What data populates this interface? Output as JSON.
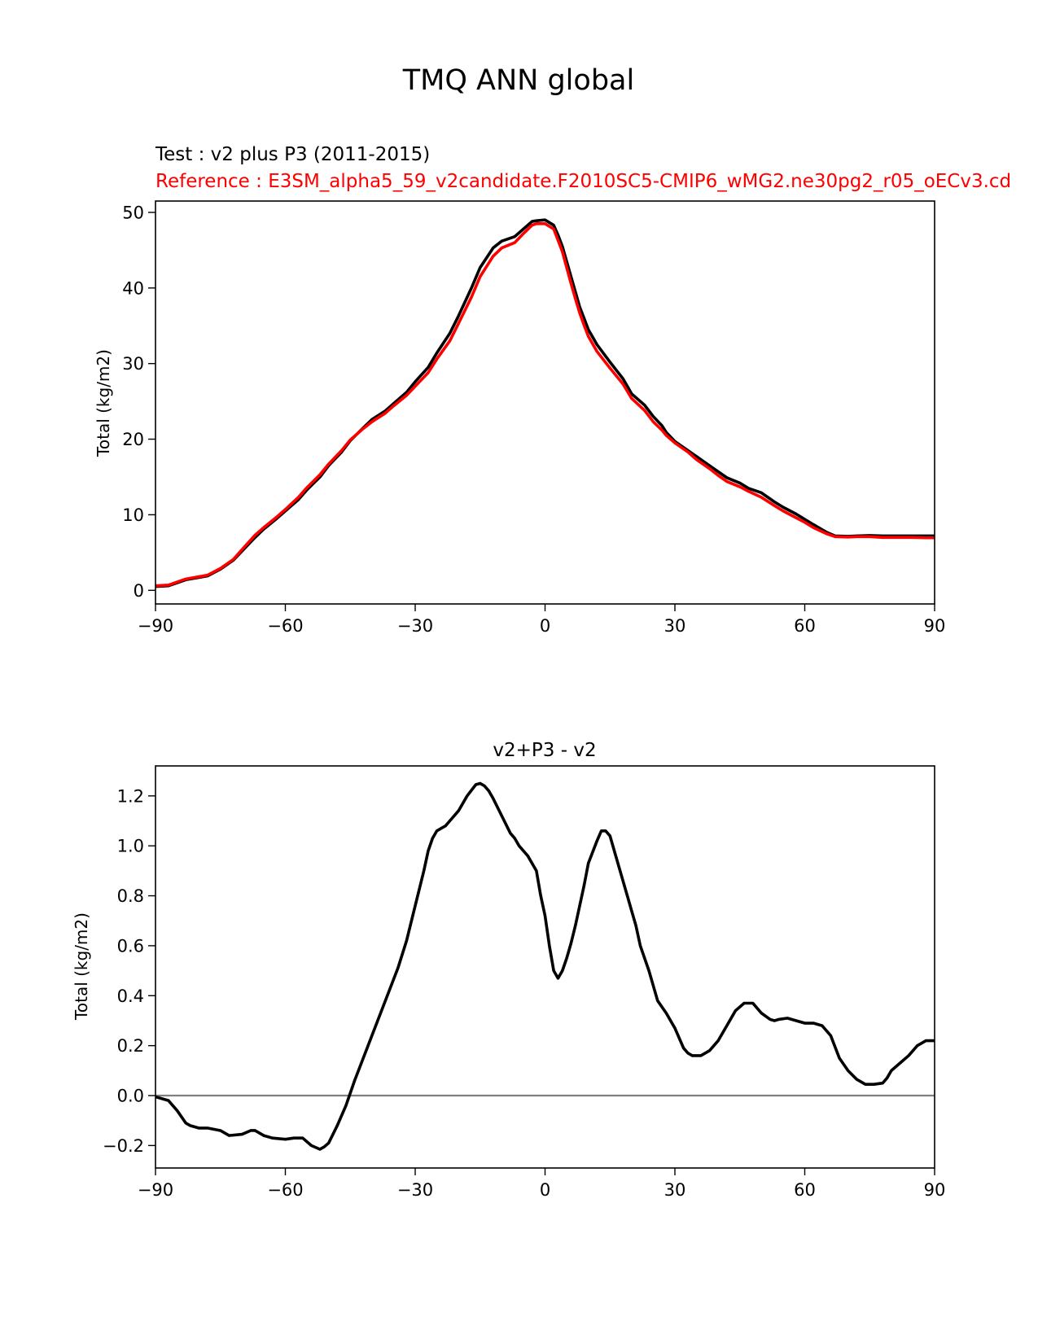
{
  "figure": {
    "suptitle": "TMQ ANN global"
  },
  "colors": {
    "test": "#000000",
    "reference": "#ff0000",
    "diff": "#000000",
    "zero_line": "#808080",
    "axes": "#000000",
    "background": "#ffffff"
  },
  "chart_data": [
    {
      "type": "line",
      "title_test": "Test : v2 plus P3 (2011-2015)",
      "title_reference": "Reference : E3SM_alpha5_59_v2candidate.F2010SC5-CMIP6_wMG2.ne30pg2_r05_oECv3.cd",
      "xlabel": "",
      "ylabel": "Total (kg/m2)",
      "xlim": [
        -90,
        90
      ],
      "ylim": [
        -1.8,
        51.5
      ],
      "xticks": [
        -90,
        -60,
        -30,
        0,
        30,
        60,
        90
      ],
      "xtick_labels": [
        "−90",
        "−60",
        "−30",
        "0",
        "30",
        "60",
        "90"
      ],
      "yticks": [
        0,
        10,
        20,
        30,
        40,
        50
      ],
      "ytick_labels": [
        "0",
        "10",
        "20",
        "30",
        "40",
        "50"
      ],
      "grid": false,
      "series": [
        {
          "role": "test",
          "x": [
            -90,
            -87,
            -85,
            -83,
            -80,
            -78,
            -75,
            -72,
            -70,
            -67,
            -65,
            -62,
            -60,
            -57,
            -55,
            -52,
            -50,
            -47,
            -45,
            -42,
            -40,
            -37,
            -35,
            -32,
            -30,
            -27,
            -25,
            -22,
            -20,
            -17,
            -15,
            -12,
            -10,
            -7,
            -5,
            -3,
            -2,
            0,
            2,
            3,
            4,
            5,
            6,
            7,
            8,
            9,
            10,
            12,
            15,
            18,
            20,
            23,
            25,
            27,
            28,
            30,
            33,
            35,
            38,
            40,
            42,
            45,
            47,
            50,
            53,
            55,
            58,
            60,
            62,
            65,
            67,
            70,
            72,
            75,
            78,
            80,
            83,
            85,
            88,
            90
          ],
          "y": [
            0.5,
            0.6,
            1.0,
            1.4,
            1.7,
            1.9,
            2.8,
            4.0,
            5.2,
            7.0,
            8.1,
            9.5,
            10.5,
            12.0,
            13.3,
            15.0,
            16.5,
            18.3,
            19.8,
            21.5,
            22.6,
            23.7,
            24.7,
            26.2,
            27.6,
            29.5,
            31.4,
            34.0,
            36.3,
            40.0,
            42.7,
            45.3,
            46.2,
            46.8,
            47.8,
            48.8,
            48.9,
            49.0,
            48.3,
            47.0,
            45.5,
            43.5,
            41.5,
            39.5,
            37.5,
            36.0,
            34.5,
            32.5,
            30.2,
            28.0,
            26.0,
            24.5,
            23.0,
            21.8,
            20.9,
            19.7,
            18.5,
            17.7,
            16.5,
            15.7,
            14.9,
            14.2,
            13.5,
            12.9,
            11.7,
            11.0,
            10.1,
            9.4,
            8.7,
            7.7,
            7.2,
            7.15,
            7.2,
            7.25,
            7.2,
            7.2,
            7.2,
            7.2,
            7.2,
            7.2
          ]
        },
        {
          "role": "reference",
          "x": [
            -90,
            -87,
            -85,
            -83,
            -80,
            -78,
            -75,
            -72,
            -70,
            -67,
            -65,
            -62,
            -60,
            -57,
            -55,
            -52,
            -50,
            -47,
            -45,
            -42,
            -40,
            -37,
            -35,
            -32,
            -30,
            -27,
            -25,
            -22,
            -20,
            -17,
            -15,
            -12,
            -10,
            -7,
            -5,
            -3,
            -2,
            0,
            2,
            3,
            4,
            5,
            6,
            7,
            8,
            9,
            10,
            12,
            15,
            18,
            20,
            23,
            25,
            27,
            28,
            30,
            33,
            35,
            38,
            40,
            42,
            45,
            47,
            50,
            53,
            55,
            58,
            60,
            62,
            65,
            67,
            70,
            72,
            75,
            78,
            80,
            83,
            85,
            88,
            90
          ],
          "y": [
            0.6,
            0.7,
            1.1,
            1.5,
            1.8,
            2.0,
            2.9,
            4.1,
            5.4,
            7.3,
            8.3,
            9.7,
            10.7,
            12.3,
            13.6,
            15.3,
            16.7,
            18.5,
            19.9,
            21.4,
            22.3,
            23.4,
            24.4,
            25.8,
            27.0,
            28.8,
            30.6,
            33.0,
            35.3,
            38.8,
            41.5,
            44.2,
            45.3,
            46.0,
            47.2,
            48.3,
            48.5,
            48.5,
            47.8,
            46.3,
            44.8,
            42.7,
            40.6,
            38.6,
            36.7,
            35.1,
            33.6,
            31.6,
            29.4,
            27.3,
            25.4,
            23.8,
            22.3,
            21.2,
            20.5,
            19.5,
            18.3,
            17.3,
            16.1,
            15.2,
            14.4,
            13.7,
            13.1,
            12.3,
            11.2,
            10.5,
            9.6,
            9.0,
            8.3,
            7.5,
            7.1,
            7.05,
            7.1,
            7.1,
            7.0,
            7.0,
            7.0,
            7.0,
            6.95,
            6.95
          ]
        }
      ]
    },
    {
      "type": "line",
      "title": "v2+P3 - v2",
      "xlabel": "",
      "ylabel": "Total (kg/m2)",
      "xlim": [
        -90,
        90
      ],
      "ylim": [
        -0.29,
        1.32
      ],
      "xticks": [
        -90,
        -60,
        -30,
        0,
        30,
        60,
        90
      ],
      "xtick_labels": [
        "−90",
        "−60",
        "−30",
        "0",
        "30",
        "60",
        "90"
      ],
      "yticks": [
        -0.2,
        0.0,
        0.2,
        0.4,
        0.6,
        0.8,
        1.0,
        1.2
      ],
      "ytick_labels": [
        "−0.2",
        "0.0",
        "0.2",
        "0.4",
        "0.6",
        "0.8",
        "1.0",
        "1.2"
      ],
      "grid": false,
      "zero_line": 0.0,
      "series": [
        {
          "role": "diff",
          "x": [
            -90,
            -87,
            -85,
            -83,
            -82,
            -80,
            -78,
            -75,
            -73,
            -70,
            -68,
            -67,
            -65,
            -63,
            -60,
            -58,
            -56,
            -54,
            -52,
            -51,
            -50,
            -48,
            -46,
            -44,
            -42,
            -40,
            -38,
            -36,
            -34,
            -32,
            -30,
            -28,
            -27,
            -26,
            -25,
            -24,
            -23,
            -22,
            -20,
            -18,
            -16,
            -15,
            -14,
            -13,
            -12,
            -10,
            -8,
            -7,
            -6,
            -4,
            -2,
            -1,
            0,
            1,
            2,
            3,
            4,
            5,
            6,
            7,
            8,
            9,
            10,
            12,
            13,
            14,
            15,
            16,
            17,
            18,
            19,
            20,
            21,
            22,
            24,
            26,
            28,
            30,
            32,
            33,
            34,
            36,
            38,
            40,
            42,
            44,
            46,
            48,
            50,
            52,
            53,
            54,
            56,
            58,
            60,
            62,
            64,
            66,
            68,
            70,
            72,
            74,
            76,
            78,
            79,
            80,
            82,
            84,
            86,
            88,
            90
          ],
          "y": [
            -0.005,
            -0.02,
            -0.06,
            -0.11,
            -0.12,
            -0.13,
            -0.13,
            -0.14,
            -0.16,
            -0.155,
            -0.14,
            -0.14,
            -0.16,
            -0.17,
            -0.175,
            -0.17,
            -0.17,
            -0.2,
            -0.215,
            -0.205,
            -0.19,
            -0.12,
            -0.04,
            0.06,
            0.15,
            0.24,
            0.33,
            0.42,
            0.51,
            0.62,
            0.76,
            0.9,
            0.98,
            1.03,
            1.06,
            1.07,
            1.08,
            1.1,
            1.14,
            1.2,
            1.245,
            1.25,
            1.24,
            1.22,
            1.19,
            1.12,
            1.05,
            1.03,
            1.0,
            0.96,
            0.9,
            0.8,
            0.72,
            0.6,
            0.5,
            0.47,
            0.5,
            0.55,
            0.61,
            0.68,
            0.76,
            0.84,
            0.93,
            1.02,
            1.06,
            1.06,
            1.04,
            0.98,
            0.92,
            0.86,
            0.8,
            0.74,
            0.68,
            0.6,
            0.5,
            0.38,
            0.33,
            0.27,
            0.19,
            0.17,
            0.16,
            0.16,
            0.18,
            0.22,
            0.28,
            0.34,
            0.37,
            0.37,
            0.33,
            0.305,
            0.3,
            0.305,
            0.31,
            0.3,
            0.29,
            0.29,
            0.28,
            0.24,
            0.15,
            0.1,
            0.065,
            0.045,
            0.045,
            0.05,
            0.07,
            0.1,
            0.13,
            0.16,
            0.2,
            0.22,
            0.22
          ]
        }
      ]
    }
  ]
}
